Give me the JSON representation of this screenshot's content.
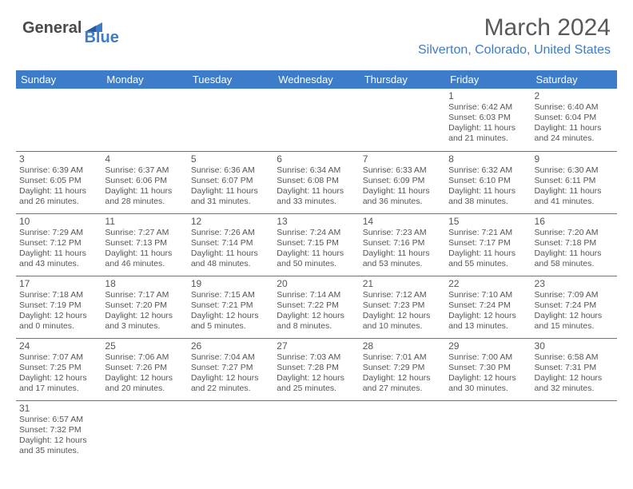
{
  "logo": {
    "main": "General",
    "sub": "Blue"
  },
  "title": "March 2024",
  "location": "Silverton, Colorado, United States",
  "colors": {
    "header_bg": "#3d7cc9",
    "header_text": "#ffffff",
    "border": "#3d7cc9",
    "text": "#555555",
    "title": "#595959"
  },
  "daynames": [
    "Sunday",
    "Monday",
    "Tuesday",
    "Wednesday",
    "Thursday",
    "Friday",
    "Saturday"
  ],
  "weeks": [
    [
      null,
      null,
      null,
      null,
      null,
      {
        "d": "1",
        "sr": "Sunrise: 6:42 AM",
        "ss": "Sunset: 6:03 PM",
        "dl1": "Daylight: 11 hours",
        "dl2": "and 21 minutes."
      },
      {
        "d": "2",
        "sr": "Sunrise: 6:40 AM",
        "ss": "Sunset: 6:04 PM",
        "dl1": "Daylight: 11 hours",
        "dl2": "and 24 minutes."
      }
    ],
    [
      {
        "d": "3",
        "sr": "Sunrise: 6:39 AM",
        "ss": "Sunset: 6:05 PM",
        "dl1": "Daylight: 11 hours",
        "dl2": "and 26 minutes."
      },
      {
        "d": "4",
        "sr": "Sunrise: 6:37 AM",
        "ss": "Sunset: 6:06 PM",
        "dl1": "Daylight: 11 hours",
        "dl2": "and 28 minutes."
      },
      {
        "d": "5",
        "sr": "Sunrise: 6:36 AM",
        "ss": "Sunset: 6:07 PM",
        "dl1": "Daylight: 11 hours",
        "dl2": "and 31 minutes."
      },
      {
        "d": "6",
        "sr": "Sunrise: 6:34 AM",
        "ss": "Sunset: 6:08 PM",
        "dl1": "Daylight: 11 hours",
        "dl2": "and 33 minutes."
      },
      {
        "d": "7",
        "sr": "Sunrise: 6:33 AM",
        "ss": "Sunset: 6:09 PM",
        "dl1": "Daylight: 11 hours",
        "dl2": "and 36 minutes."
      },
      {
        "d": "8",
        "sr": "Sunrise: 6:32 AM",
        "ss": "Sunset: 6:10 PM",
        "dl1": "Daylight: 11 hours",
        "dl2": "and 38 minutes."
      },
      {
        "d": "9",
        "sr": "Sunrise: 6:30 AM",
        "ss": "Sunset: 6:11 PM",
        "dl1": "Daylight: 11 hours",
        "dl2": "and 41 minutes."
      }
    ],
    [
      {
        "d": "10",
        "sr": "Sunrise: 7:29 AM",
        "ss": "Sunset: 7:12 PM",
        "dl1": "Daylight: 11 hours",
        "dl2": "and 43 minutes."
      },
      {
        "d": "11",
        "sr": "Sunrise: 7:27 AM",
        "ss": "Sunset: 7:13 PM",
        "dl1": "Daylight: 11 hours",
        "dl2": "and 46 minutes."
      },
      {
        "d": "12",
        "sr": "Sunrise: 7:26 AM",
        "ss": "Sunset: 7:14 PM",
        "dl1": "Daylight: 11 hours",
        "dl2": "and 48 minutes."
      },
      {
        "d": "13",
        "sr": "Sunrise: 7:24 AM",
        "ss": "Sunset: 7:15 PM",
        "dl1": "Daylight: 11 hours",
        "dl2": "and 50 minutes."
      },
      {
        "d": "14",
        "sr": "Sunrise: 7:23 AM",
        "ss": "Sunset: 7:16 PM",
        "dl1": "Daylight: 11 hours",
        "dl2": "and 53 minutes."
      },
      {
        "d": "15",
        "sr": "Sunrise: 7:21 AM",
        "ss": "Sunset: 7:17 PM",
        "dl1": "Daylight: 11 hours",
        "dl2": "and 55 minutes."
      },
      {
        "d": "16",
        "sr": "Sunrise: 7:20 AM",
        "ss": "Sunset: 7:18 PM",
        "dl1": "Daylight: 11 hours",
        "dl2": "and 58 minutes."
      }
    ],
    [
      {
        "d": "17",
        "sr": "Sunrise: 7:18 AM",
        "ss": "Sunset: 7:19 PM",
        "dl1": "Daylight: 12 hours",
        "dl2": "and 0 minutes."
      },
      {
        "d": "18",
        "sr": "Sunrise: 7:17 AM",
        "ss": "Sunset: 7:20 PM",
        "dl1": "Daylight: 12 hours",
        "dl2": "and 3 minutes."
      },
      {
        "d": "19",
        "sr": "Sunrise: 7:15 AM",
        "ss": "Sunset: 7:21 PM",
        "dl1": "Daylight: 12 hours",
        "dl2": "and 5 minutes."
      },
      {
        "d": "20",
        "sr": "Sunrise: 7:14 AM",
        "ss": "Sunset: 7:22 PM",
        "dl1": "Daylight: 12 hours",
        "dl2": "and 8 minutes."
      },
      {
        "d": "21",
        "sr": "Sunrise: 7:12 AM",
        "ss": "Sunset: 7:23 PM",
        "dl1": "Daylight: 12 hours",
        "dl2": "and 10 minutes."
      },
      {
        "d": "22",
        "sr": "Sunrise: 7:10 AM",
        "ss": "Sunset: 7:24 PM",
        "dl1": "Daylight: 12 hours",
        "dl2": "and 13 minutes."
      },
      {
        "d": "23",
        "sr": "Sunrise: 7:09 AM",
        "ss": "Sunset: 7:24 PM",
        "dl1": "Daylight: 12 hours",
        "dl2": "and 15 minutes."
      }
    ],
    [
      {
        "d": "24",
        "sr": "Sunrise: 7:07 AM",
        "ss": "Sunset: 7:25 PM",
        "dl1": "Daylight: 12 hours",
        "dl2": "and 17 minutes."
      },
      {
        "d": "25",
        "sr": "Sunrise: 7:06 AM",
        "ss": "Sunset: 7:26 PM",
        "dl1": "Daylight: 12 hours",
        "dl2": "and 20 minutes."
      },
      {
        "d": "26",
        "sr": "Sunrise: 7:04 AM",
        "ss": "Sunset: 7:27 PM",
        "dl1": "Daylight: 12 hours",
        "dl2": "and 22 minutes."
      },
      {
        "d": "27",
        "sr": "Sunrise: 7:03 AM",
        "ss": "Sunset: 7:28 PM",
        "dl1": "Daylight: 12 hours",
        "dl2": "and 25 minutes."
      },
      {
        "d": "28",
        "sr": "Sunrise: 7:01 AM",
        "ss": "Sunset: 7:29 PM",
        "dl1": "Daylight: 12 hours",
        "dl2": "and 27 minutes."
      },
      {
        "d": "29",
        "sr": "Sunrise: 7:00 AM",
        "ss": "Sunset: 7:30 PM",
        "dl1": "Daylight: 12 hours",
        "dl2": "and 30 minutes."
      },
      {
        "d": "30",
        "sr": "Sunrise: 6:58 AM",
        "ss": "Sunset: 7:31 PM",
        "dl1": "Daylight: 12 hours",
        "dl2": "and 32 minutes."
      }
    ],
    [
      {
        "d": "31",
        "sr": "Sunrise: 6:57 AM",
        "ss": "Sunset: 7:32 PM",
        "dl1": "Daylight: 12 hours",
        "dl2": "and 35 minutes."
      },
      null,
      null,
      null,
      null,
      null,
      null
    ]
  ]
}
